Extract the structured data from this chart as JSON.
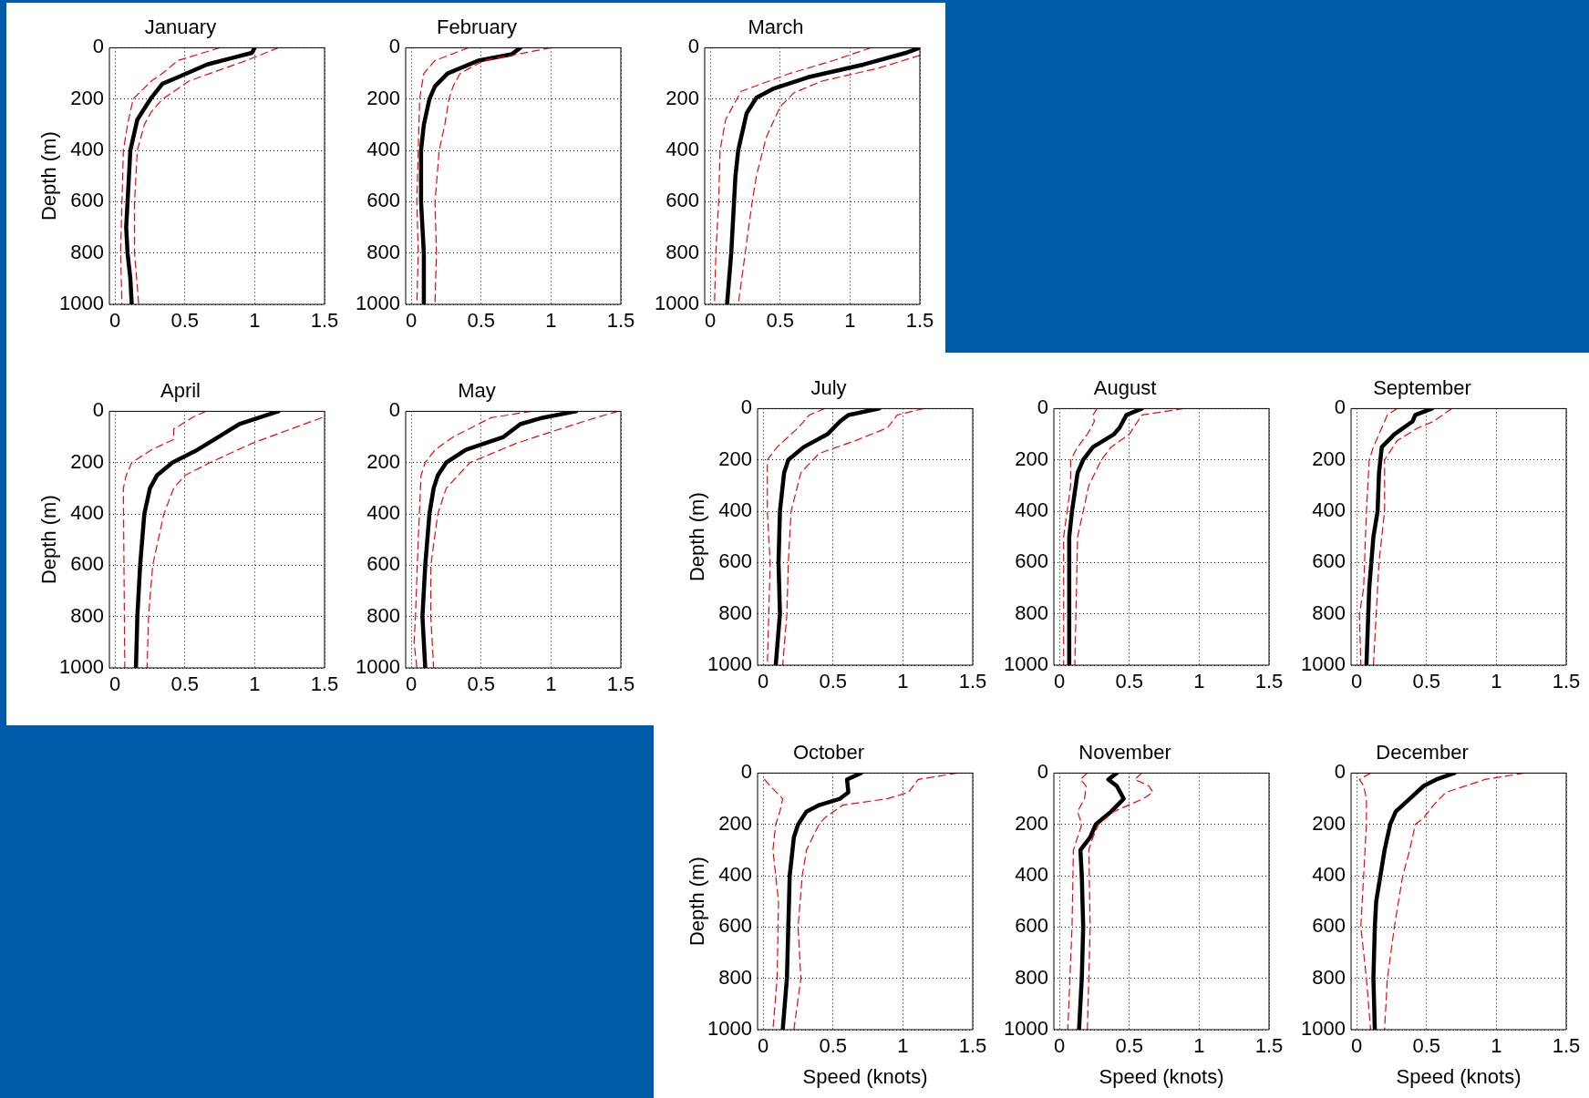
{
  "chart_data": [
    {
      "type": "line",
      "title": "January",
      "ylabel": "Depth (m)",
      "xlim": [
        -0.04,
        1.5
      ],
      "xticks": [
        0,
        0.5,
        1,
        1.5
      ],
      "ylim": [
        1000,
        0
      ],
      "yticks": [
        0,
        200,
        400,
        600,
        800,
        1000
      ],
      "grid": true,
      "series": [
        {
          "color": "#ff0000",
          "line_style": "dashed",
          "x": [
            0.75,
            0.45,
            0.34,
            0.26,
            0.13,
            0.09,
            0.06,
            0.05,
            0.04,
            0.05
          ],
          "values": [
            0,
            50,
            100,
            130,
            200,
            300,
            400,
            600,
            800,
            1000
          ]
        },
        {
          "color": "#ff0000",
          "line_style": "dashed",
          "x": [
            1.17,
            0.94,
            0.68,
            0.53,
            0.34,
            0.26,
            0.21,
            0.16,
            0.14,
            0.14,
            0.17
          ],
          "values": [
            0,
            50,
            100,
            130,
            200,
            250,
            300,
            400,
            600,
            800,
            1000
          ]
        },
        {
          "color": "#000000",
          "line_style": "solid",
          "x": [
            1.0,
            0.98,
            0.66,
            0.45,
            0.34,
            0.26,
            0.16,
            0.11,
            0.1,
            0.09,
            0.08,
            0.09,
            0.11,
            0.12
          ],
          "values": [
            0,
            20,
            65,
            115,
            140,
            195,
            280,
            400,
            500,
            600,
            700,
            800,
            900,
            1000
          ]
        }
      ]
    },
    {
      "type": "line",
      "title": "February",
      "xlim": [
        -0.04,
        1.5
      ],
      "xticks": [
        0,
        0.5,
        1,
        1.5
      ],
      "ylim": [
        1000,
        0
      ],
      "yticks": [
        0,
        200,
        400,
        600,
        800,
        1000
      ],
      "grid": true,
      "series": [
        {
          "color": "#ff0000",
          "line_style": "dashed",
          "x": [
            0.41,
            0.17,
            0.09,
            0.06,
            0.05,
            0.04,
            0.05,
            0.04
          ],
          "values": [
            0,
            50,
            100,
            200,
            400,
            600,
            800,
            1000
          ]
        },
        {
          "color": "#ff0000",
          "line_style": "dashed",
          "x": [
            1.0,
            0.52,
            0.35,
            0.3,
            0.27,
            0.24,
            0.2,
            0.17,
            0.18,
            0.17
          ],
          "values": [
            0,
            50,
            100,
            150,
            200,
            300,
            400,
            600,
            800,
            1000
          ]
        },
        {
          "color": "#000000",
          "line_style": "solid",
          "x": [
            0.78,
            0.72,
            0.48,
            0.26,
            0.17,
            0.13,
            0.09,
            0.07,
            0.07,
            0.09,
            0.09
          ],
          "values": [
            0,
            25,
            50,
            100,
            150,
            200,
            300,
            400,
            600,
            800,
            1000
          ]
        }
      ]
    },
    {
      "type": "line",
      "title": "March",
      "xlim": [
        -0.04,
        1.5
      ],
      "xticks": [
        0,
        0.5,
        1,
        1.5
      ],
      "ylim": [
        1000,
        0
      ],
      "yticks": [
        0,
        200,
        400,
        600,
        800,
        1000
      ],
      "grid": true,
      "series": [
        {
          "color": "#ff0000",
          "line_style": "dashed",
          "x": [
            1.15,
            0.88,
            0.57,
            0.22,
            0.11,
            0.07,
            0.06,
            0.04,
            0.03
          ],
          "values": [
            0,
            50,
            100,
            170,
            280,
            400,
            600,
            800,
            1000
          ]
        },
        {
          "color": "#ff0000",
          "line_style": "dashed",
          "x": [
            1.5,
            1.2,
            0.8,
            0.6,
            0.5,
            0.4,
            0.33,
            0.3,
            0.25,
            0.2
          ],
          "values": [
            30,
            80,
            130,
            175,
            230,
            350,
            500,
            600,
            800,
            1000
          ]
        },
        {
          "color": "#000000",
          "line_style": "solid",
          "x": [
            1.5,
            1.4,
            1.1,
            0.7,
            0.45,
            0.33,
            0.26,
            0.2,
            0.18,
            0.16,
            0.15,
            0.12
          ],
          "values": [
            0,
            20,
            65,
            115,
            160,
            195,
            255,
            400,
            500,
            700,
            800,
            1000
          ]
        }
      ]
    },
    {
      "type": "line",
      "title": "April",
      "ylabel": "Depth (m)",
      "xlim": [
        -0.04,
        1.5
      ],
      "xticks": [
        0,
        0.5,
        1,
        1.5
      ],
      "ylim": [
        1000,
        0
      ],
      "yticks": [
        0,
        200,
        400,
        600,
        800,
        1000
      ],
      "grid": true,
      "series": [
        {
          "color": "#ff0000",
          "line_style": "dashed",
          "x": [
            0.65,
            0.55,
            0.42,
            0.42,
            0.26,
            0.12,
            0.08,
            0.06,
            0.07
          ],
          "values": [
            0,
            25,
            70,
            110,
            150,
            200,
            250,
            300,
            1000
          ]
        },
        {
          "color": "#ff0000",
          "line_style": "dashed",
          "x": [
            1.48,
            1.23,
            0.98,
            0.68,
            0.5,
            0.42,
            0.35,
            0.27,
            0.24,
            0.23
          ],
          "values": [
            25,
            75,
            125,
            200,
            250,
            300,
            400,
            600,
            800,
            1000
          ]
        },
        {
          "color": "#000000",
          "line_style": "solid",
          "x": [
            1.17,
            1.03,
            0.89,
            0.74,
            0.59,
            0.41,
            0.3,
            0.25,
            0.21,
            0.18,
            0.16,
            0.15
          ],
          "values": [
            0,
            25,
            50,
            100,
            150,
            200,
            250,
            300,
            400,
            600,
            800,
            1000
          ]
        }
      ]
    },
    {
      "type": "line",
      "title": "May",
      "xlim": [
        -0.04,
        1.5
      ],
      "xticks": [
        0,
        0.5,
        1,
        1.5
      ],
      "ylim": [
        1000,
        0
      ],
      "yticks": [
        0,
        200,
        400,
        600,
        800,
        1000
      ],
      "grid": true,
      "series": [
        {
          "color": "#ff0000",
          "line_style": "dashed",
          "x": [
            0.86,
            0.57,
            0.3,
            0.17,
            0.1,
            0.07,
            0.05,
            0.03,
            0.02,
            0.04
          ],
          "values": [
            0,
            25,
            100,
            150,
            200,
            250,
            500,
            800,
            900,
            1000
          ]
        },
        {
          "color": "#ff0000",
          "line_style": "dashed",
          "x": [
            1.48,
            1.32,
            1.03,
            0.75,
            0.42,
            0.25,
            0.19,
            0.14,
            0.14,
            0.16
          ],
          "values": [
            0,
            25,
            75,
            125,
            200,
            300,
            400,
            600,
            800,
            1000
          ]
        },
        {
          "color": "#000000",
          "line_style": "solid",
          "x": [
            1.18,
            0.94,
            0.78,
            0.66,
            0.39,
            0.25,
            0.19,
            0.16,
            0.13,
            0.1,
            0.08,
            0.1
          ],
          "values": [
            0,
            25,
            50,
            100,
            150,
            200,
            250,
            300,
            400,
            600,
            800,
            1000
          ]
        }
      ]
    },
    {
      "type": "line",
      "title": "July",
      "ylabel": "Depth (m)",
      "xlim": [
        -0.04,
        1.5
      ],
      "xticks": [
        0,
        0.5,
        1,
        1.5
      ],
      "ylim": [
        1000,
        0
      ],
      "yticks": [
        0,
        200,
        400,
        600,
        800,
        1000
      ],
      "grid": true,
      "series": [
        {
          "color": "#ff0000",
          "line_style": "dashed",
          "x": [
            0.44,
            0.33,
            0.25,
            0.1,
            0.03,
            0.03,
            0.05,
            0.04,
            0.03
          ],
          "values": [
            0,
            25,
            75,
            150,
            200,
            400,
            600,
            800,
            1000
          ]
        },
        {
          "color": "#ff0000",
          "line_style": "dashed",
          "x": [
            1.15,
            0.96,
            0.89,
            0.66,
            0.4,
            0.27,
            0.2,
            0.18,
            0.17,
            0.14
          ],
          "values": [
            0,
            25,
            75,
            125,
            175,
            250,
            400,
            600,
            800,
            1000
          ]
        },
        {
          "color": "#000000",
          "line_style": "solid",
          "x": [
            0.83,
            0.61,
            0.55,
            0.46,
            0.29,
            0.18,
            0.15,
            0.14,
            0.12,
            0.11,
            0.12,
            0.09
          ],
          "values": [
            0,
            25,
            50,
            100,
            150,
            200,
            250,
            300,
            400,
            600,
            800,
            1000
          ]
        }
      ]
    },
    {
      "type": "line",
      "title": "August",
      "xlim": [
        -0.04,
        1.5
      ],
      "xticks": [
        0,
        0.5,
        1,
        1.5
      ],
      "ylim": [
        1000,
        0
      ],
      "yticks": [
        0,
        200,
        400,
        600,
        800,
        1000
      ],
      "grid": true,
      "series": [
        {
          "color": "#ff0000",
          "line_style": "dashed",
          "x": [
            0.27,
            0.24,
            0.25,
            0.2,
            0.13,
            0.08,
            0.08,
            0.03,
            0.03,
            0.03
          ],
          "values": [
            0,
            25,
            50,
            100,
            150,
            200,
            300,
            500,
            800,
            1000
          ]
        },
        {
          "color": "#ff0000",
          "line_style": "dashed",
          "x": [
            0.89,
            0.59,
            0.5,
            0.37,
            0.3,
            0.21,
            0.17,
            0.13,
            0.11
          ],
          "values": [
            0,
            25,
            100,
            150,
            200,
            300,
            400,
            500,
            1000
          ]
        },
        {
          "color": "#000000",
          "line_style": "solid",
          "x": [
            0.59,
            0.48,
            0.43,
            0.39,
            0.24,
            0.17,
            0.13,
            0.09,
            0.07,
            0.07
          ],
          "values": [
            0,
            25,
            75,
            100,
            150,
            200,
            250,
            400,
            500,
            1000
          ]
        }
      ]
    },
    {
      "type": "line",
      "title": "September",
      "xlim": [
        -0.04,
        1.5
      ],
      "xticks": [
        0,
        0.5,
        1,
        1.5
      ],
      "ylim": [
        1000,
        0
      ],
      "yticks": [
        0,
        200,
        400,
        600,
        800,
        1000
      ],
      "grid": true,
      "series": [
        {
          "color": "#ff0000",
          "line_style": "dashed",
          "x": [
            0.29,
            0.22,
            0.12,
            0.09,
            0.07,
            0.05,
            0.02,
            0.03
          ],
          "values": [
            0,
            25,
            150,
            200,
            400,
            700,
            800,
            1000
          ]
        },
        {
          "color": "#ff0000",
          "line_style": "dashed",
          "x": [
            0.68,
            0.55,
            0.44,
            0.29,
            0.2,
            0.2,
            0.16,
            0.14,
            0.12
          ],
          "values": [
            0,
            50,
            75,
            125,
            200,
            400,
            600,
            800,
            1000
          ]
        },
        {
          "color": "#000000",
          "line_style": "solid",
          "x": [
            0.54,
            0.42,
            0.4,
            0.27,
            0.18,
            0.16,
            0.15,
            0.12,
            0.09,
            0.07
          ],
          "values": [
            0,
            25,
            50,
            100,
            150,
            250,
            400,
            500,
            700,
            1000
          ]
        }
      ]
    },
    {
      "type": "line",
      "title": "October",
      "ylabel": "Depth (m)",
      "xlabel": "Speed (knots)",
      "xlim": [
        -0.04,
        1.5
      ],
      "xticks": [
        0,
        0.5,
        1,
        1.5
      ],
      "ylim": [
        1000,
        0
      ],
      "yticks": [
        0,
        200,
        400,
        600,
        800,
        1000
      ],
      "grid": true,
      "series": [
        {
          "color": "#ff0000",
          "line_style": "dashed",
          "x": [
            0.01,
            0.05,
            0.14,
            0.12,
            0.09,
            0.07,
            0.11,
            0.1,
            0.07
          ],
          "values": [
            25,
            50,
            100,
            150,
            200,
            300,
            500,
            800,
            1000
          ]
        },
        {
          "color": "#ff0000",
          "line_style": "dashed",
          "x": [
            1.39,
            1.11,
            1.04,
            0.89,
            0.57,
            0.44,
            0.4,
            0.31,
            0.28,
            0.25,
            0.27,
            0.22
          ],
          "values": [
            0,
            25,
            75,
            100,
            125,
            175,
            200,
            300,
            400,
            600,
            800,
            1000
          ]
        },
        {
          "color": "#000000",
          "line_style": "solid",
          "x": [
            0.7,
            0.6,
            0.61,
            0.55,
            0.4,
            0.31,
            0.25,
            0.22,
            0.19,
            0.18,
            0.17,
            0.14
          ],
          "values": [
            0,
            25,
            75,
            100,
            125,
            150,
            200,
            250,
            400,
            600,
            800,
            1000
          ]
        }
      ]
    },
    {
      "type": "line",
      "title": "November",
      "xlabel": "Speed (knots)",
      "xlim": [
        -0.04,
        1.5
      ],
      "xticks": [
        0,
        0.5,
        1,
        1.5
      ],
      "ylim": [
        1000,
        0
      ],
      "yticks": [
        0,
        200,
        400,
        600,
        800,
        1000
      ],
      "grid": true,
      "series": [
        {
          "color": "#ff0000",
          "line_style": "dashed",
          "x": [
            0.2,
            0.15,
            0.19,
            0.18,
            0.13,
            0.16,
            0.1,
            0.09,
            0.06
          ],
          "values": [
            0,
            25,
            50,
            100,
            150,
            200,
            300,
            600,
            1000
          ]
        },
        {
          "color": "#ff0000",
          "line_style": "dashed",
          "x": [
            0.59,
            0.54,
            0.64,
            0.67,
            0.6,
            0.39,
            0.28,
            0.24,
            0.21,
            0.22,
            0.2
          ],
          "values": [
            0,
            25,
            50,
            75,
            100,
            150,
            200,
            250,
            300,
            600,
            1000
          ]
        },
        {
          "color": "#000000",
          "line_style": "solid",
          "x": [
            0.41,
            0.35,
            0.41,
            0.46,
            0.37,
            0.26,
            0.22,
            0.15,
            0.16,
            0.17,
            0.16,
            0.14
          ],
          "values": [
            0,
            25,
            50,
            100,
            150,
            200,
            250,
            300,
            400,
            600,
            800,
            1000
          ]
        }
      ]
    },
    {
      "type": "line",
      "title": "December",
      "xlabel": "Speed (knots)",
      "xlim": [
        -0.04,
        1.5
      ],
      "xticks": [
        0,
        0.5,
        1,
        1.5
      ],
      "ylim": [
        1000,
        0
      ],
      "yticks": [
        0,
        200,
        400,
        600,
        800,
        1000
      ],
      "grid": true,
      "series": [
        {
          "color": "#ff0000",
          "line_style": "dashed",
          "x": [
            0.1,
            0.02,
            0.05,
            0.07,
            0.07,
            0.03,
            0.07,
            0.1
          ],
          "values": [
            0,
            25,
            50,
            100,
            200,
            600,
            800,
            1000
          ]
        },
        {
          "color": "#ff0000",
          "line_style": "dashed",
          "x": [
            1.2,
            0.92,
            0.64,
            0.55,
            0.48,
            0.42,
            0.38,
            0.33,
            0.27,
            0.22,
            0.2
          ],
          "values": [
            0,
            25,
            75,
            125,
            175,
            200,
            300,
            400,
            600,
            800,
            1000
          ]
        },
        {
          "color": "#000000",
          "line_style": "solid",
          "x": [
            0.7,
            0.57,
            0.48,
            0.38,
            0.28,
            0.24,
            0.2,
            0.17,
            0.14,
            0.13,
            0.12,
            0.13
          ],
          "values": [
            0,
            25,
            50,
            100,
            150,
            200,
            300,
            400,
            500,
            600,
            800,
            1000
          ]
        }
      ]
    }
  ]
}
